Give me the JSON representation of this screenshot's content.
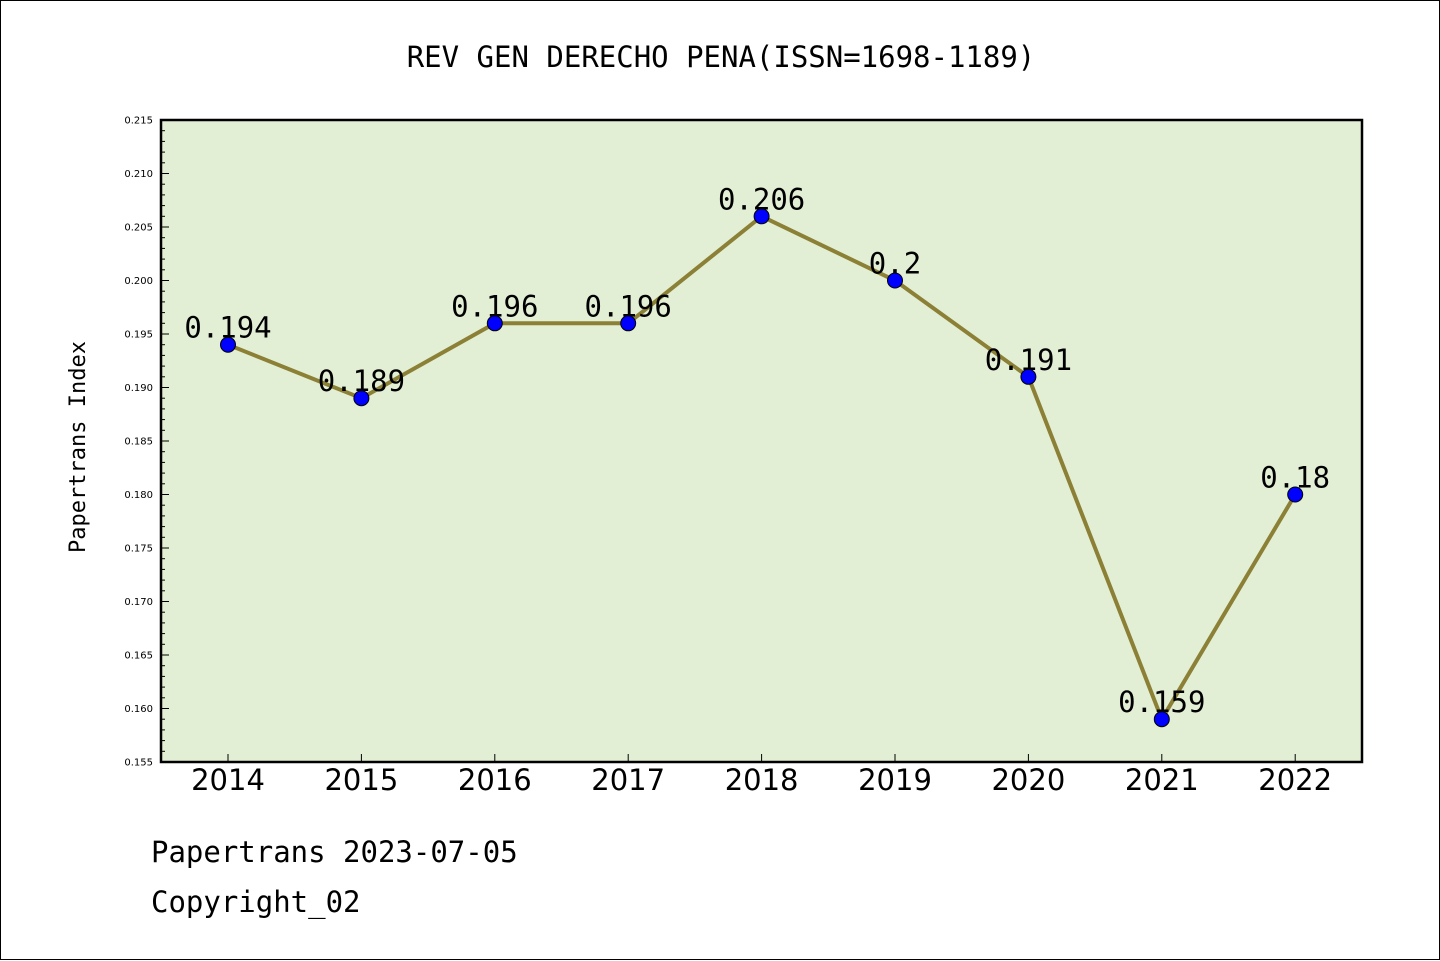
{
  "chart_data": {
    "type": "line",
    "title": "REV GEN DERECHO PENA(ISSN=1698-1189)",
    "xlabel": "",
    "ylabel": "Papertrans Index",
    "categories": [
      "2014",
      "2015",
      "2016",
      "2017",
      "2018",
      "2019",
      "2020",
      "2021",
      "2022"
    ],
    "values": [
      0.194,
      0.189,
      0.196,
      0.196,
      0.206,
      0.2,
      0.191,
      0.159,
      0.18
    ],
    "data_labels": [
      "0.194",
      "0.189",
      "0.196",
      "0.196",
      "0.206",
      "0.2",
      "0.191",
      "0.159",
      "0.18"
    ],
    "ylim": [
      0.155,
      0.215
    ],
    "yticks": [
      "0.155",
      "0.160",
      "0.165",
      "0.170",
      "0.175",
      "0.180",
      "0.185",
      "0.190",
      "0.195",
      "0.200",
      "0.205",
      "0.210",
      "0.215"
    ],
    "grid": false,
    "legend": "none",
    "colors": {
      "plot_background": "#e2efd5",
      "line": "#8b8035",
      "marker": "#0000ff"
    }
  },
  "footer": {
    "date_text": "Papertrans 2023-07-05",
    "copyright_text": "Copyright_02"
  }
}
